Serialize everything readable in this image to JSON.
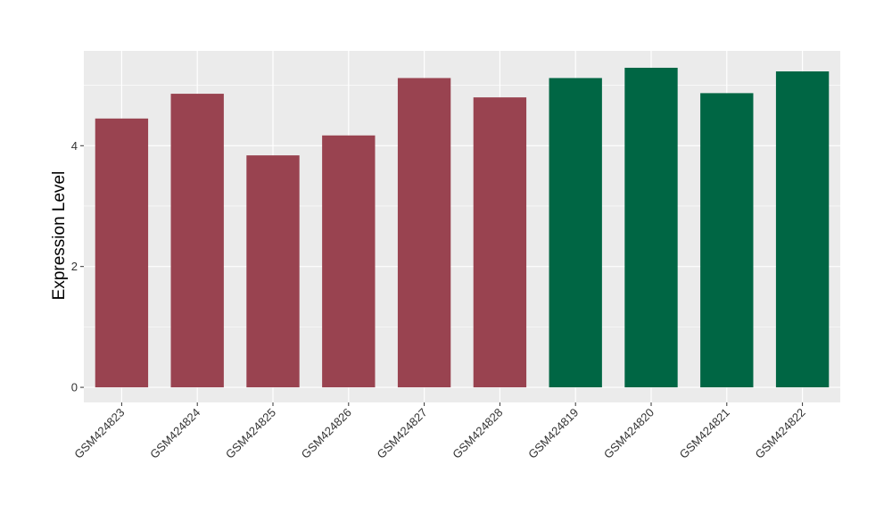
{
  "chart_data": {
    "type": "bar",
    "title": "",
    "xlabel": "",
    "ylabel": "Expression Level",
    "categories": [
      "GSM424823",
      "GSM424824",
      "GSM424825",
      "GSM424826",
      "GSM424827",
      "GSM424828",
      "GSM424819",
      "GSM424820",
      "GSM424821",
      "GSM424822"
    ],
    "values": [
      4.45,
      4.86,
      3.84,
      4.17,
      5.12,
      4.8,
      5.12,
      5.29,
      4.87,
      5.23
    ],
    "bar_colors": [
      "#994350",
      "#994350",
      "#994350",
      "#994350",
      "#994350",
      "#994350",
      "#006644",
      "#006644",
      "#006644",
      "#006644"
    ],
    "yticks": [
      0,
      2,
      4
    ],
    "ylim": [
      -0.25,
      5.57
    ],
    "grid": true,
    "legend": "none",
    "colors": {
      "panel_background": "#EBEBEB",
      "grid_line": "#FFFFFF",
      "tick_mark": "#333333",
      "tick_text": "#333333",
      "axis_title": "#000000"
    }
  }
}
